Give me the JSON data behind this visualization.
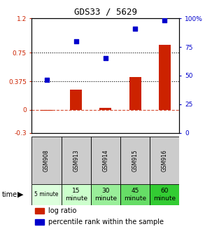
{
  "title": "GDS33 / 5629",
  "samples": [
    "GSM908",
    "GSM913",
    "GSM914",
    "GSM915",
    "GSM916"
  ],
  "time_labels": [
    "5 minute",
    "15\nminute",
    "30\nminute",
    "45\nminute",
    "60\nminute"
  ],
  "time_colors": [
    "#ddffdd",
    "#ccffcc",
    "#99ee99",
    "#66dd66",
    "#33cc33"
  ],
  "log_ratio": [
    -0.01,
    0.27,
    0.03,
    0.43,
    0.85
  ],
  "percentile_rank": [
    46,
    80,
    65,
    91,
    98
  ],
  "bar_color": "#cc2200",
  "dot_color": "#0000cc",
  "ylim_left": [
    -0.3,
    1.2
  ],
  "ylim_right": [
    0,
    100
  ],
  "yticks_left": [
    -0.3,
    0,
    0.375,
    0.75,
    1.2
  ],
  "ytick_labels_left": [
    "-0.3",
    "0",
    "0.375",
    "0.75",
    "1.2"
  ],
  "yticks_right": [
    0,
    25,
    50,
    75,
    100
  ],
  "ytick_labels_right": [
    "0",
    "25",
    "50",
    "75",
    "100%"
  ],
  "hlines": [
    0.375,
    0.75
  ],
  "background_color": "#ffffff",
  "sample_row_color": "#cccccc",
  "legend_log_ratio": "log ratio",
  "legend_percentile": "percentile rank within the sample"
}
